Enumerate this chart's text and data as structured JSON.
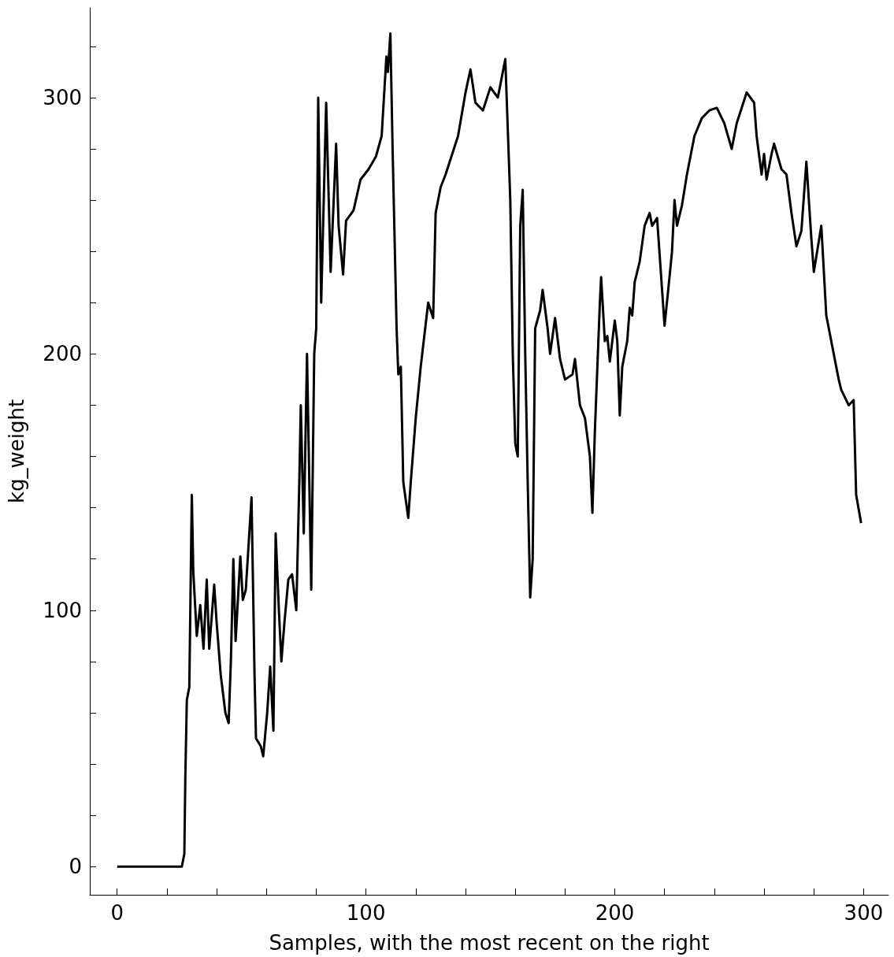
{
  "chart_data": {
    "type": "line",
    "xlabel": "Samples, with the most recent on the right",
    "ylabel": "kg_weight",
    "xlim": [
      -11,
      310
    ],
    "ylim": [
      -11,
      335
    ],
    "xticks": [
      0,
      {
        "value": 20,
        "label": null
      },
      {
        "value": 40,
        "label": null
      },
      {
        "value": 60,
        "label": null
      },
      {
        "value": 80,
        "label": null
      },
      100,
      {
        "value": 120,
        "label": null
      },
      {
        "value": 140,
        "label": null
      },
      {
        "value": 160,
        "label": null
      },
      {
        "value": 180,
        "label": null
      },
      200,
      {
        "value": 220,
        "label": null
      },
      {
        "value": 240,
        "label": null
      },
      {
        "value": 260,
        "label": null
      },
      {
        "value": 280,
        "label": null
      },
      300
    ],
    "yticks": [
      0,
      {
        "value": 20,
        "label": null
      },
      {
        "value": 40,
        "label": null
      },
      {
        "value": 60,
        "label": null
      },
      {
        "value": 80,
        "label": null
      },
      100,
      {
        "value": 120,
        "label": null
      },
      {
        "value": 140,
        "label": null
      },
      {
        "value": 160,
        "label": null
      },
      {
        "value": 180,
        "label": null
      },
      200,
      {
        "value": 220,
        "label": null
      },
      {
        "value": 240,
        "label": null
      },
      {
        "value": 260,
        "label": null
      },
      {
        "value": 280,
        "label": null
      },
      300,
      {
        "value": 320,
        "label": null
      }
    ],
    "marker": "none",
    "line_style": "solid",
    "series": [
      {
        "color": "#000000",
        "x": [
          0,
          26,
          27,
          27.4,
          28,
          29,
          30,
          30.6,
          32,
          33.4,
          34.7,
          36,
          37,
          39,
          40,
          41.6,
          43.5,
          44.8,
          45.7,
          46.7,
          47.6,
          49.5,
          50.5,
          51.7,
          54,
          54.6,
          55.2,
          55.8,
          57.7,
          58.7,
          60.3,
          61.5,
          62.8,
          63.7,
          65,
          66,
          67.2,
          68.8,
          70.3,
          72,
          73.2,
          73.8,
          75,
          76.3,
          78,
          79.2,
          80,
          80.8,
          82,
          84,
          85.8,
          88,
          89,
          90.8,
          92,
          95,
          97.8,
          101,
          104,
          106.3,
          108.2,
          108.8,
          109.8,
          110.7,
          112.3,
          113,
          114,
          115,
          117,
          118,
          120,
          122,
          125,
          127,
          128,
          130,
          132,
          137,
          140,
          142,
          144,
          147,
          150,
          153,
          156,
          158,
          159,
          160,
          161,
          162,
          163,
          164,
          165,
          166,
          167,
          168,
          170,
          171,
          173,
          174,
          176,
          178,
          180,
          183,
          184,
          186,
          188,
          190,
          191,
          192,
          194,
          194.5,
          196,
          197,
          198,
          200,
          201,
          202,
          203,
          205,
          206,
          207,
          208,
          210,
          212,
          214,
          215,
          217,
          219,
          220,
          222,
          223,
          224,
          225,
          227,
          229,
          232,
          235,
          238,
          241,
          244,
          247,
          249,
          251,
          253,
          256,
          257,
          259,
          260,
          261,
          263,
          264,
          267,
          269,
          271,
          273,
          275,
          277,
          279,
          280,
          283,
          285,
          286,
          289,
          290,
          291,
          294,
          296,
          297,
          299
        ],
        "values": [
          0,
          0,
          5,
          35,
          65,
          70,
          145,
          115,
          90,
          102,
          85,
          112,
          85,
          110,
          95,
          75,
          60,
          56,
          80,
          120,
          88,
          121,
          104,
          108,
          144,
          110,
          75,
          50,
          47,
          43,
          60,
          78,
          53,
          130,
          100,
          80,
          95,
          112,
          114,
          100,
          150,
          180,
          130,
          200,
          108,
          200,
          210,
          300,
          220,
          298,
          232,
          282,
          250,
          231,
          252,
          256,
          268,
          272,
          277,
          285,
          316,
          310,
          325,
          280,
          210,
          192,
          195,
          150,
          136,
          150,
          175,
          195,
          220,
          214,
          255,
          265,
          270,
          285,
          302,
          311,
          298,
          295,
          304,
          300,
          315,
          260,
          200,
          165,
          160,
          250,
          264,
          200,
          150,
          105,
          120,
          210,
          217,
          225,
          210,
          200,
          214,
          198,
          190,
          192,
          198,
          180,
          175,
          160,
          138,
          170,
          220,
          230,
          205,
          207,
          197,
          213,
          205,
          176,
          195,
          205,
          218,
          215,
          228,
          236,
          250,
          255,
          250,
          253,
          225,
          211,
          230,
          240,
          260,
          250,
          258,
          270,
          285,
          292,
          295,
          296,
          290,
          280,
          290,
          296,
          302,
          298,
          285,
          270,
          278,
          268,
          278,
          282,
          272,
          270,
          255,
          242,
          248,
          275,
          245,
          232,
          250,
          215,
          210,
          195,
          190,
          186,
          180,
          182,
          145,
          134
        ]
      }
    ]
  }
}
